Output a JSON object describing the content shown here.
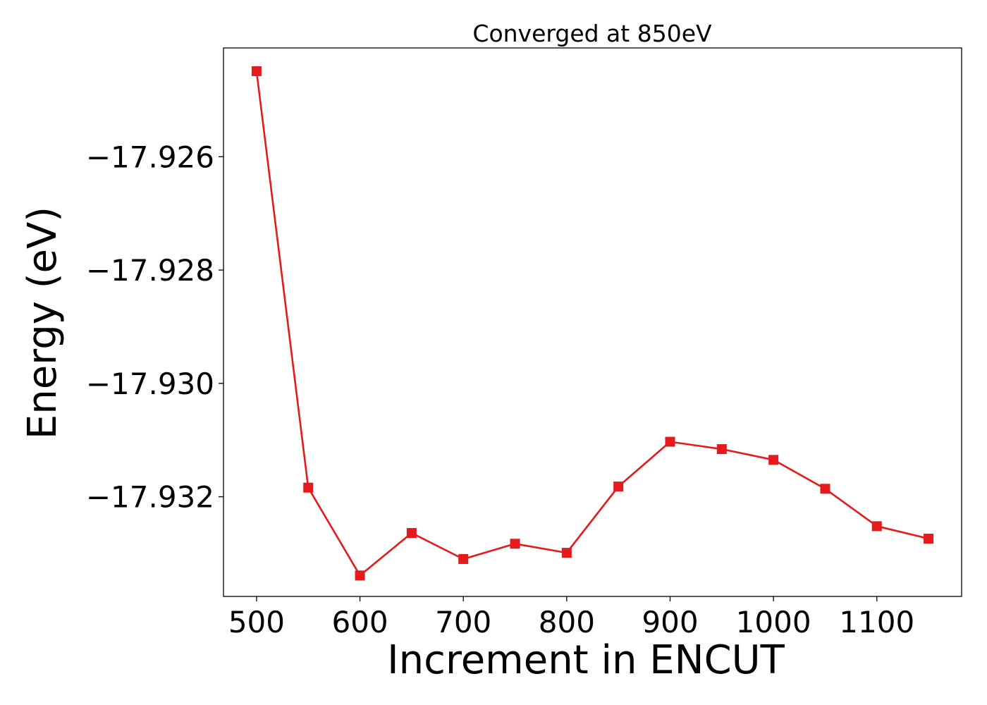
{
  "chart_data": {
    "type": "line",
    "title": "Converged at 850eV",
    "xlabel": "Increment in ENCUT",
    "ylabel": "Energy (eV)",
    "xlim": [
      468,
      1182
    ],
    "ylim": [
      -17.93376,
      -17.92408
    ],
    "x_ticks": [
      500,
      600,
      700,
      800,
      900,
      1000,
      1100
    ],
    "x_tick_labels": [
      "500",
      "600",
      "700",
      "800",
      "900",
      "1000",
      "1100"
    ],
    "y_ticks": [
      -17.926,
      -17.928,
      -17.93,
      -17.932
    ],
    "y_tick_labels": [
      "−17.926",
      "−17.928",
      "−17.930",
      "−17.932"
    ],
    "grid": false,
    "series": [
      {
        "color": "#e41a1c",
        "marker": "square",
        "x": [
          500,
          550,
          600,
          650,
          700,
          750,
          800,
          850,
          900,
          950,
          1000,
          1050,
          1100,
          1150
        ],
        "y": [
          -17.92449,
          -17.93184,
          -17.93339,
          -17.93264,
          -17.9331,
          -17.93283,
          -17.93299,
          -17.93182,
          -17.93103,
          -17.93116,
          -17.93135,
          -17.93186,
          -17.93252,
          -17.93274
        ]
      }
    ]
  }
}
